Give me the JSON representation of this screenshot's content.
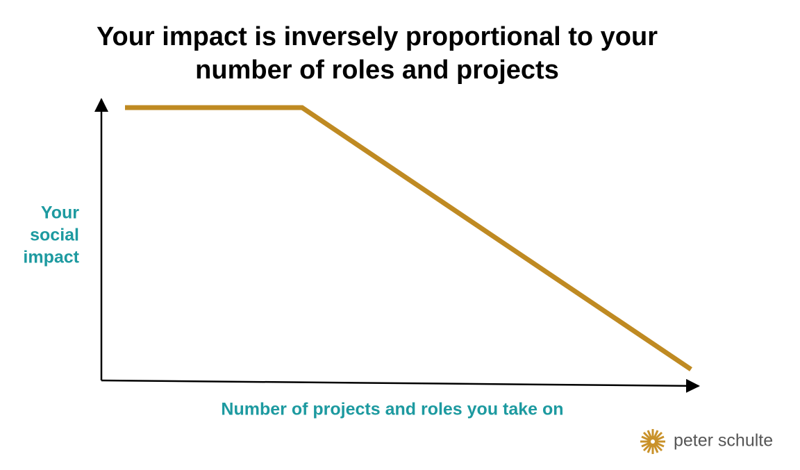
{
  "chart_data": {
    "type": "line",
    "title": [
      "Your impact is inversely proportional to your",
      "number of roles and projects"
    ],
    "y_label": [
      "Your",
      "social",
      "impact"
    ],
    "x_label": "Number of projects and roles you take on",
    "color": "#bf8a22"
  },
  "brand": "peter schulte"
}
